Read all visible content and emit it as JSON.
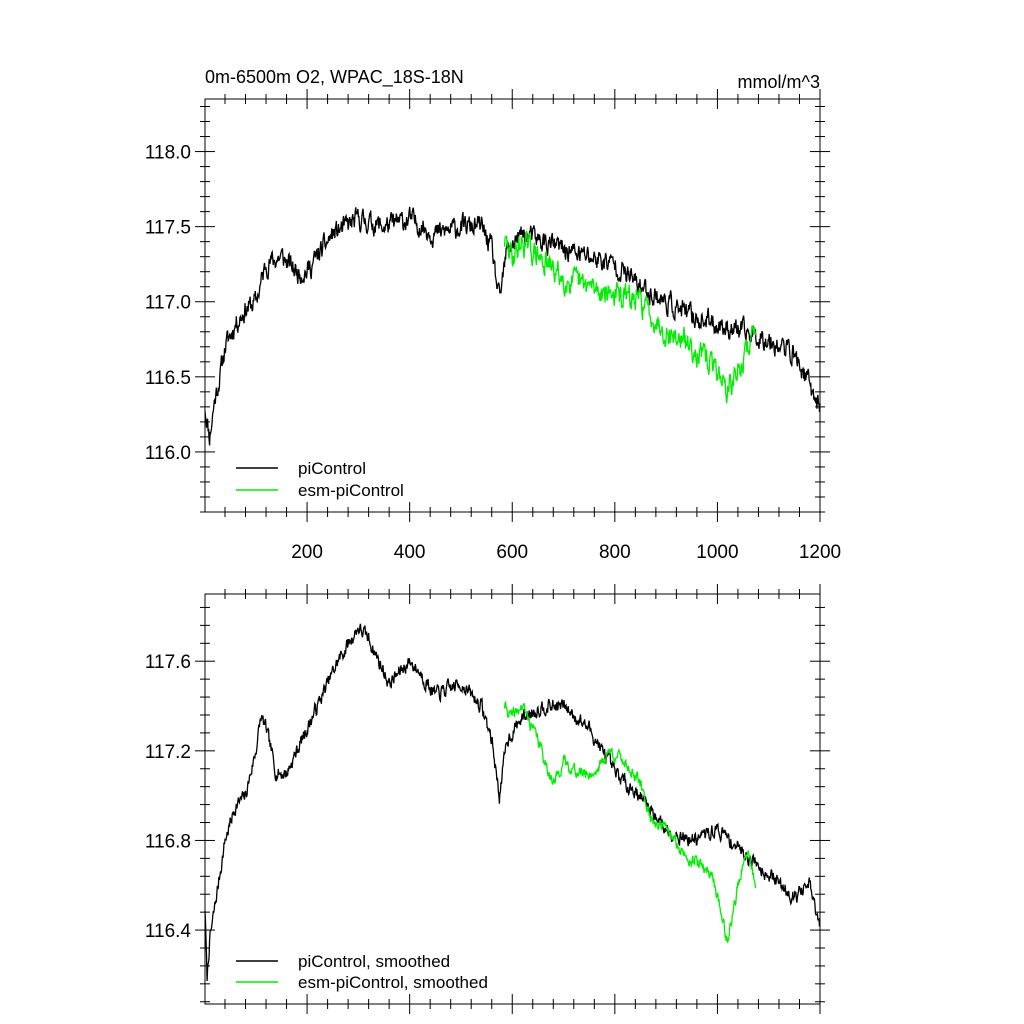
{
  "chart_data": [
    {
      "type": "line",
      "title": "0m-6500m O2, WPAC_18S-18N",
      "units": "mmol/m^3",
      "xlim": [
        1,
        1200
      ],
      "ylim": [
        115.6,
        118.35
      ],
      "xticks": [
        200,
        400,
        600,
        800,
        1000,
        1200
      ],
      "xtick_labels": [
        "200",
        "400",
        "600",
        "800",
        "1000",
        "1200"
      ],
      "yticks": [
        116.0,
        116.5,
        117.0,
        117.5,
        118.0
      ],
      "ytick_labels": [
        "116.0",
        "116.5",
        "117.0",
        "117.5",
        "118.0"
      ],
      "legend_position": "bottom-left",
      "series": [
        {
          "name": "piControl",
          "color": "#000000",
          "noise": 0.13,
          "seed": 11,
          "x": [
            1,
            10,
            20,
            30,
            40,
            60,
            80,
            100,
            120,
            150,
            180,
            200,
            250,
            300,
            350,
            400,
            450,
            500,
            540,
            560,
            575,
            590,
            620,
            660,
            700,
            750,
            800,
            850,
            900,
            950,
            1000,
            1050,
            1100,
            1150,
            1200
          ],
          "y": [
            116.3,
            116.1,
            116.35,
            116.5,
            116.7,
            116.85,
            116.95,
            117.0,
            117.25,
            117.3,
            117.2,
            117.2,
            117.45,
            117.55,
            117.5,
            117.55,
            117.45,
            117.5,
            117.5,
            117.35,
            117.0,
            117.35,
            117.45,
            117.4,
            117.35,
            117.3,
            117.25,
            117.1,
            117.0,
            116.9,
            116.85,
            116.8,
            116.75,
            116.65,
            116.3
          ]
        },
        {
          "name": "esm-piControl",
          "color": "#00ee00",
          "noise": 0.15,
          "seed": 29,
          "x": [
            585,
            600,
            620,
            650,
            700,
            750,
            800,
            850,
            900,
            950,
            1000,
            1020,
            1050,
            1075
          ],
          "y": [
            117.4,
            117.3,
            117.4,
            117.3,
            117.15,
            117.1,
            117.05,
            117.0,
            116.8,
            116.7,
            116.55,
            116.4,
            116.6,
            116.85
          ]
        }
      ]
    },
    {
      "type": "line",
      "xlim": [
        1,
        1200
      ],
      "ylim": [
        116.07,
        117.9
      ],
      "xticks": [
        200,
        400,
        600,
        800,
        1000,
        1200
      ],
      "yticks": [
        116.4,
        116.8,
        117.2,
        117.6
      ],
      "ytick_labels": [
        "116.4",
        "116.8",
        "117.2",
        "117.6"
      ],
      "legend_position": "bottom-left",
      "series": [
        {
          "name": "piControl, smoothed",
          "color": "#000000",
          "noise": 0.06,
          "seed": 7,
          "x": [
            1,
            5,
            10,
            20,
            40,
            60,
            80,
            100,
            110,
            120,
            140,
            160,
            180,
            200,
            230,
            260,
            300,
            320,
            340,
            360,
            380,
            400,
            420,
            450,
            500,
            540,
            560,
            575,
            590,
            620,
            660,
            700,
            750,
            800,
            850,
            900,
            950,
            1000,
            1050,
            1100,
            1150,
            1180,
            1200
          ],
          "y": [
            116.5,
            116.18,
            116.35,
            116.5,
            116.8,
            116.95,
            117.0,
            117.2,
            117.35,
            117.3,
            117.1,
            117.1,
            117.2,
            117.3,
            117.45,
            117.6,
            117.75,
            117.7,
            117.6,
            117.5,
            117.55,
            117.6,
            117.55,
            117.45,
            117.5,
            117.4,
            117.25,
            117.0,
            117.25,
            117.35,
            117.4,
            117.4,
            117.3,
            117.1,
            117.0,
            116.85,
            116.8,
            116.85,
            116.75,
            116.65,
            116.55,
            116.6,
            116.4
          ]
        },
        {
          "name": "esm-piControl, smoothed",
          "color": "#00ee00",
          "noise": 0.05,
          "seed": 41,
          "x": [
            585,
            600,
            620,
            650,
            680,
            700,
            730,
            760,
            790,
            820,
            850,
            870,
            900,
            930,
            960,
            990,
            1010,
            1020,
            1040,
            1060,
            1075
          ],
          "y": [
            117.4,
            117.35,
            117.4,
            117.25,
            117.05,
            117.15,
            117.1,
            117.1,
            117.2,
            117.15,
            117.05,
            116.9,
            116.85,
            116.75,
            116.7,
            116.65,
            116.45,
            116.35,
            116.6,
            116.75,
            116.6
          ]
        }
      ]
    }
  ]
}
